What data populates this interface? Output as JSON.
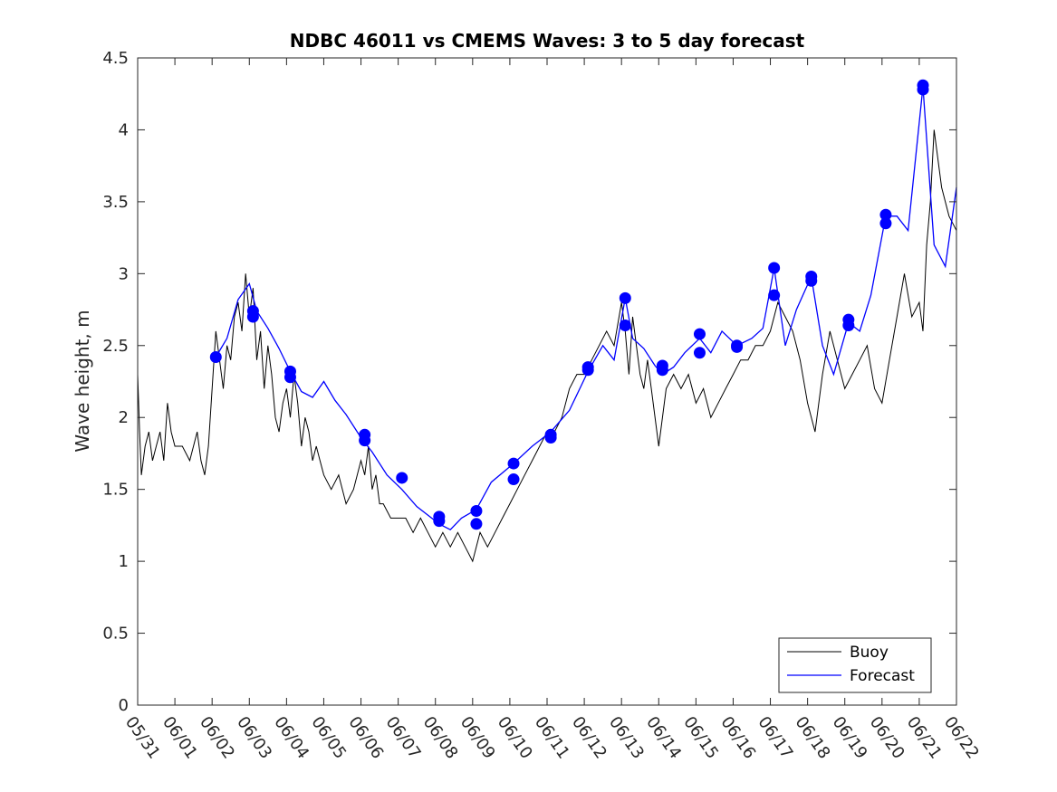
{
  "chart_data": {
    "type": "line",
    "title": "NDBC 46011 vs CMEMS Waves: 3 to 5 day forecast",
    "xlabel": "",
    "ylabel": "Wave height, m",
    "ylim": [
      0,
      4.5
    ],
    "yticks": [
      "0",
      "0.5",
      "1",
      "1.5",
      "2",
      "2.5",
      "3",
      "3.5",
      "4",
      "4.5"
    ],
    "xlim": [
      "05/31",
      "06/22"
    ],
    "xticks": [
      "05/31",
      "06/01",
      "06/02",
      "06/03",
      "06/04",
      "06/05",
      "06/06",
      "06/07",
      "06/08",
      "06/09",
      "06/10",
      "06/11",
      "06/12",
      "06/13",
      "06/14",
      "06/15",
      "06/16",
      "06/17",
      "06/18",
      "06/19",
      "06/20",
      "06/21",
      "06/22"
    ],
    "grid": false,
    "legend_position": "bottom-right",
    "colors": {
      "buoy": "#000000",
      "forecast": "#0000ff"
    },
    "series": [
      {
        "name": "Buoy",
        "x_days_from_0531": [
          0,
          0.05,
          0.1,
          0.2,
          0.3,
          0.4,
          0.5,
          0.6,
          0.7,
          0.8,
          0.9,
          1.0,
          1.2,
          1.4,
          1.6,
          1.7,
          1.8,
          1.9,
          2.0,
          2.1,
          2.2,
          2.3,
          2.4,
          2.5,
          2.6,
          2.7,
          2.8,
          2.9,
          3.0,
          3.1,
          3.2,
          3.3,
          3.4,
          3.5,
          3.6,
          3.7,
          3.8,
          3.9,
          4.0,
          4.1,
          4.2,
          4.3,
          4.4,
          4.5,
          4.6,
          4.7,
          4.8,
          4.9,
          5.0,
          5.2,
          5.4,
          5.6,
          5.8,
          6.0,
          6.1,
          6.2,
          6.3,
          6.4,
          6.5,
          6.6,
          6.8,
          7.0,
          7.2,
          7.4,
          7.6,
          7.8,
          8.0,
          8.2,
          8.4,
          8.6,
          8.8,
          9.0,
          9.2,
          9.4,
          9.6,
          9.8,
          10.0,
          10.2,
          10.4,
          10.6,
          10.8,
          11.0,
          11.2,
          11.4,
          11.6,
          11.8,
          12.0,
          12.2,
          12.4,
          12.6,
          12.8,
          13.0,
          13.1,
          13.2,
          13.3,
          13.4,
          13.5,
          13.6,
          13.7,
          13.8,
          14.0,
          14.2,
          14.4,
          14.6,
          14.8,
          15.0,
          15.2,
          15.4,
          15.6,
          15.8,
          16.0,
          16.2,
          16.4,
          16.6,
          16.8,
          17.0,
          17.2,
          17.4,
          17.6,
          17.8,
          18.0,
          18.2,
          18.4,
          18.6,
          18.8,
          19.0,
          19.2,
          19.4,
          19.6,
          19.8,
          20.0,
          20.2,
          20.4,
          20.6,
          20.8,
          21.0,
          21.1,
          21.2,
          21.3,
          21.4,
          21.6,
          21.8,
          22.0
        ],
        "y": [
          2.3,
          1.9,
          1.6,
          1.8,
          1.9,
          1.7,
          1.8,
          1.9,
          1.7,
          2.1,
          1.9,
          1.8,
          1.8,
          1.7,
          1.9,
          1.7,
          1.6,
          1.8,
          2.2,
          2.6,
          2.4,
          2.2,
          2.5,
          2.4,
          2.7,
          2.8,
          2.6,
          3.0,
          2.7,
          2.9,
          2.4,
          2.6,
          2.2,
          2.5,
          2.3,
          2.0,
          1.9,
          2.1,
          2.2,
          2.0,
          2.3,
          2.1,
          1.8,
          2.0,
          1.9,
          1.7,
          1.8,
          1.7,
          1.6,
          1.5,
          1.6,
          1.4,
          1.5,
          1.7,
          1.6,
          1.8,
          1.5,
          1.6,
          1.4,
          1.4,
          1.3,
          1.3,
          1.3,
          1.2,
          1.3,
          1.2,
          1.1,
          1.2,
          1.1,
          1.2,
          1.1,
          1.0,
          1.2,
          1.1,
          1.2,
          1.3,
          1.4,
          1.5,
          1.6,
          1.7,
          1.8,
          1.9,
          1.9,
          2.0,
          2.2,
          2.3,
          2.3,
          2.4,
          2.5,
          2.6,
          2.5,
          2.8,
          2.6,
          2.3,
          2.7,
          2.5,
          2.3,
          2.2,
          2.4,
          2.2,
          1.8,
          2.2,
          2.3,
          2.2,
          2.3,
          2.1,
          2.2,
          2.0,
          2.1,
          2.2,
          2.3,
          2.4,
          2.4,
          2.5,
          2.5,
          2.6,
          2.8,
          2.7,
          2.6,
          2.4,
          2.1,
          1.9,
          2.3,
          2.6,
          2.4,
          2.2,
          2.3,
          2.4,
          2.5,
          2.2,
          2.1,
          2.4,
          2.7,
          3.0,
          2.7,
          2.8,
          2.6,
          3.2,
          3.5,
          4.0,
          3.6,
          3.4,
          3.3,
          3.2,
          3.5
        ]
      },
      {
        "name": "Forecast",
        "x_days_from_0531": [
          2.1,
          2.4,
          2.7,
          3.0,
          3.2,
          3.5,
          3.8,
          4.1,
          4.4,
          4.7,
          5.0,
          5.3,
          5.6,
          6.0,
          6.3,
          6.7,
          7.1,
          7.5,
          7.9,
          8.1,
          8.4,
          8.7,
          9.1,
          9.5,
          10.1,
          10.6,
          11.1,
          11.6,
          12.1,
          12.5,
          12.8,
          13.1,
          13.3,
          13.6,
          13.9,
          14.1,
          14.4,
          14.7,
          15.1,
          15.4,
          15.7,
          16.1,
          16.5,
          16.8,
          17.1,
          17.4,
          17.7,
          18.1,
          18.4,
          18.7,
          19.1,
          19.4,
          19.7,
          20.1,
          20.4,
          20.7,
          21.1,
          21.4,
          21.7,
          22.0
        ],
        "y": [
          2.42,
          2.55,
          2.82,
          2.93,
          2.74,
          2.62,
          2.48,
          2.32,
          2.18,
          2.14,
          2.25,
          2.12,
          2.02,
          1.86,
          1.76,
          1.6,
          1.5,
          1.38,
          1.3,
          1.26,
          1.22,
          1.3,
          1.36,
          1.55,
          1.68,
          1.8,
          1.9,
          2.05,
          2.32,
          2.5,
          2.4,
          2.83,
          2.55,
          2.48,
          2.36,
          2.3,
          2.35,
          2.45,
          2.55,
          2.45,
          2.6,
          2.5,
          2.55,
          2.62,
          3.04,
          2.5,
          2.75,
          2.98,
          2.5,
          2.3,
          2.66,
          2.6,
          2.85,
          3.4,
          3.4,
          3.3,
          4.3,
          3.2,
          3.05,
          3.6
        ]
      }
    ],
    "markers": [
      {
        "x_days_from_0531": 2.1,
        "y": 2.42
      },
      {
        "x_days_from_0531": 3.1,
        "y": 2.74
      },
      {
        "x_days_from_0531": 3.1,
        "y": 2.7
      },
      {
        "x_days_from_0531": 4.1,
        "y": 2.32
      },
      {
        "x_days_from_0531": 4.1,
        "y": 2.28
      },
      {
        "x_days_from_0531": 6.1,
        "y": 1.88
      },
      {
        "x_days_from_0531": 6.1,
        "y": 1.84
      },
      {
        "x_days_from_0531": 7.1,
        "y": 1.58
      },
      {
        "x_days_from_0531": 8.1,
        "y": 1.31
      },
      {
        "x_days_from_0531": 8.1,
        "y": 1.28
      },
      {
        "x_days_from_0531": 9.1,
        "y": 1.35
      },
      {
        "x_days_from_0531": 9.1,
        "y": 1.26
      },
      {
        "x_days_from_0531": 10.1,
        "y": 1.68
      },
      {
        "x_days_from_0531": 10.1,
        "y": 1.57
      },
      {
        "x_days_from_0531": 11.1,
        "y": 1.88
      },
      {
        "x_days_from_0531": 11.1,
        "y": 1.86
      },
      {
        "x_days_from_0531": 12.1,
        "y": 2.35
      },
      {
        "x_days_from_0531": 12.1,
        "y": 2.33
      },
      {
        "x_days_from_0531": 13.1,
        "y": 2.83
      },
      {
        "x_days_from_0531": 13.1,
        "y": 2.64
      },
      {
        "x_days_from_0531": 14.1,
        "y": 2.36
      },
      {
        "x_days_from_0531": 14.1,
        "y": 2.33
      },
      {
        "x_days_from_0531": 15.1,
        "y": 2.58
      },
      {
        "x_days_from_0531": 15.1,
        "y": 2.45
      },
      {
        "x_days_from_0531": 16.1,
        "y": 2.5
      },
      {
        "x_days_from_0531": 16.1,
        "y": 2.49
      },
      {
        "x_days_from_0531": 17.1,
        "y": 3.04
      },
      {
        "x_days_from_0531": 17.1,
        "y": 2.85
      },
      {
        "x_days_from_0531": 18.1,
        "y": 2.98
      },
      {
        "x_days_from_0531": 18.1,
        "y": 2.95
      },
      {
        "x_days_from_0531": 19.1,
        "y": 2.68
      },
      {
        "x_days_from_0531": 19.1,
        "y": 2.64
      },
      {
        "x_days_from_0531": 20.1,
        "y": 3.41
      },
      {
        "x_days_from_0531": 20.1,
        "y": 3.35
      },
      {
        "x_days_from_0531": 21.1,
        "y": 4.31
      },
      {
        "x_days_from_0531": 21.1,
        "y": 4.28
      }
    ]
  }
}
